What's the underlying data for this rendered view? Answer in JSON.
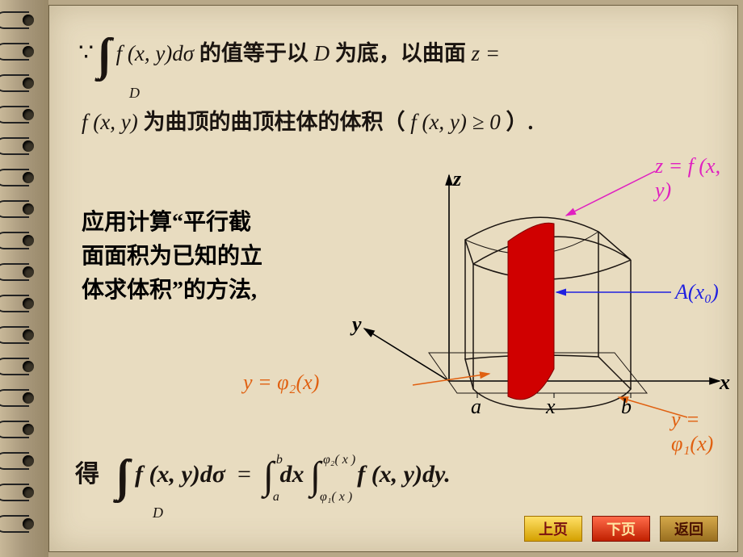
{
  "colors": {
    "page_bg": "#e8dcc0",
    "spiral_bg": "#b8a888",
    "text": "#1a1410",
    "magenta": "#e020c0",
    "blue": "#2020e0",
    "orange": "#e06010",
    "red_fill": "#d00000",
    "btn_prev_bg": "#e8c030",
    "btn_next_bg": "#e04020",
    "btn_back_bg": "#b89040",
    "axis_black": "#000000"
  },
  "line1": {
    "because": "∵",
    "int_D": "D",
    "integrand": "f (x, y)dσ",
    "cn1": " 的值等于以 ",
    "D": "D",
    "cn2": " 为底，以曲面 ",
    "zeq": "z ="
  },
  "line2": {
    "fxy": "f (x, y)",
    "cn1": " 为曲顶的曲顶柱体的体积（",
    "cond": "f (x, y) ≥ 0",
    "cn2": "）."
  },
  "block": {
    "l1": "应用计算“平行截",
    "l2": "面面积为已知的立",
    "l3": "体求体积”的方法,"
  },
  "labels": {
    "z_eq_fxy": "z = f (x, y)",
    "A_x0": "A(x₀)",
    "phi1": "y = φ₁(x)",
    "phi2": "y = φ₂(x)",
    "axes": {
      "x": "x",
      "y": "y",
      "z": "z"
    },
    "a": "a",
    "b": "b",
    "x_on_axis": "x"
  },
  "result": {
    "de": "得",
    "int_D": "D",
    "lhs": "f (x, y)dσ",
    "eq": "=",
    "a": "a",
    "b": "b",
    "dx": "dx",
    "phi1": "φ₁( x )",
    "phi2": "φ₂( x )",
    "rhs": "f (x, y)dy.",
    "integrand_fontsize": 30
  },
  "nav": {
    "prev": "上页",
    "next": "下页",
    "back": "返回"
  },
  "diagram": {
    "type": "3d-solid-illustration",
    "axes_color": "#000000",
    "surface_stroke": "#1a1410",
    "cross_section_fill": "#d00000",
    "arrow_magenta": "#e020c0",
    "arrow_blue": "#2020e0",
    "arrow_orange": "#e06010"
  }
}
